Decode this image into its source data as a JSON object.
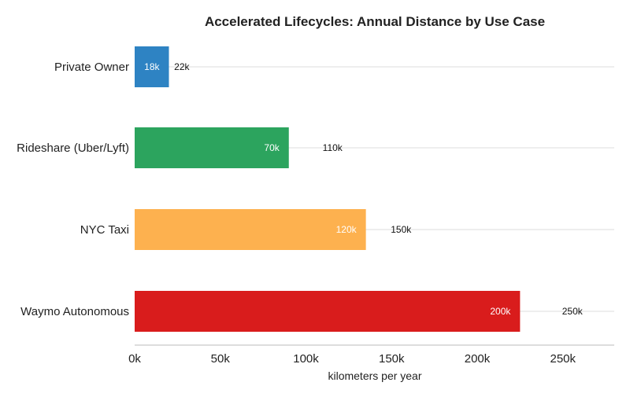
{
  "chart_data": {
    "type": "bar",
    "orientation": "horizontal",
    "title": "Accelerated Lifecycles: Annual Distance by Use Case",
    "xlabel": "kilometers per year",
    "ylabel": "",
    "categories": [
      "Private Owner",
      "Rideshare (Uber/Lyft)",
      "NYC Taxi",
      "Waymo Autonomous"
    ],
    "values": [
      20000,
      90000,
      135000,
      225000
    ],
    "bar_labels": [
      "18k",
      "70k",
      "120k",
      "200k"
    ],
    "range_labels": [
      "22k",
      "110k",
      "150k",
      "250k"
    ],
    "range_values": [
      22000,
      110000,
      150000,
      250000
    ],
    "colors": [
      "#2e83c3",
      "#2ca45e",
      "#fdb14f",
      "#d91c1c"
    ],
    "xlim": [
      0,
      280000
    ],
    "xticks": [
      0,
      50000,
      100000,
      150000,
      200000,
      250000
    ],
    "xtick_labels": [
      "0k",
      "50k",
      "100k",
      "150k",
      "200k",
      "250k"
    ],
    "grid": "horizontal reference lines per category",
    "legend": "none"
  }
}
